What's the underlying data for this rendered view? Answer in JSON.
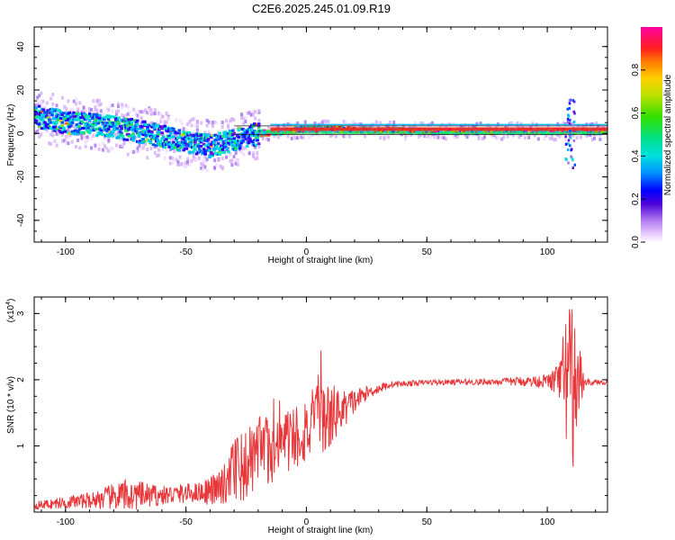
{
  "title": "C2E6.2025.245.01.09.R19",
  "chart_data": [
    {
      "type": "heatmap",
      "name": "spectrogram",
      "xlabel": "Height of straight line (km)",
      "ylabel": "Frequency (Hz)",
      "xlim": [
        -113,
        125
      ],
      "ylim": [
        -50,
        49
      ],
      "xticks": [
        -100,
        -50,
        0,
        50,
        100
      ],
      "yticks": [
        -40,
        -20,
        0,
        20,
        40
      ],
      "colorbar": {
        "label": "Normalized spectral amplitude",
        "range": [
          0.0,
          1.0
        ],
        "ticks": [
          0.0,
          0.2,
          0.4,
          0.6,
          0.8
        ],
        "tick_labels": [
          "0.0",
          "0.2",
          "0.4",
          "0.6",
          "0.8"
        ]
      },
      "ridge": [
        {
          "x": -113,
          "f": 8
        },
        {
          "x": -100,
          "f": 5
        },
        {
          "x": -80,
          "f": 3
        },
        {
          "x": -65,
          "f": 0
        },
        {
          "x": -50,
          "f": -4
        },
        {
          "x": -40,
          "f": -6
        },
        {
          "x": -30,
          "f": -3
        },
        {
          "x": -20,
          "f": 0
        },
        {
          "x": -10,
          "f": 1
        },
        {
          "x": 0,
          "f": 2
        },
        {
          "x": 50,
          "f": 1
        },
        {
          "x": 100,
          "f": 1
        },
        {
          "x": 110,
          "f": 1
        },
        {
          "x": 125,
          "f": 1
        }
      ]
    },
    {
      "type": "line",
      "name": "snr",
      "xlabel": "Height of straight line (km)",
      "ylabel": "SNR (10 * v/v)",
      "scale_label": "(x10",
      "scale_exponent": "4",
      "scale_close": ")",
      "xlim": [
        -113,
        125
      ],
      "ylim": [
        0,
        3.25
      ],
      "xticks": [
        -100,
        -50,
        0,
        50,
        100
      ],
      "yticks": [
        1,
        2,
        3
      ],
      "color": "#e8373a",
      "envelope": [
        {
          "x": -113,
          "mean": 0.1,
          "amp": 0.06
        },
        {
          "x": -90,
          "mean": 0.18,
          "amp": 0.12
        },
        {
          "x": -75,
          "mean": 0.25,
          "amp": 0.25
        },
        {
          "x": -60,
          "mean": 0.25,
          "amp": 0.15
        },
        {
          "x": -45,
          "mean": 0.3,
          "amp": 0.15
        },
        {
          "x": -35,
          "mean": 0.35,
          "amp": 0.3
        },
        {
          "x": -30,
          "mean": 0.55,
          "amp": 0.55
        },
        {
          "x": -20,
          "mean": 0.85,
          "amp": 0.6
        },
        {
          "x": -10,
          "mean": 1.05,
          "amp": 0.5
        },
        {
          "x": 0,
          "mean": 1.25,
          "amp": 0.55
        },
        {
          "x": 7,
          "mean": 1.4,
          "amp": 0.6
        },
        {
          "x": 15,
          "mean": 1.55,
          "amp": 0.3
        },
        {
          "x": 25,
          "mean": 1.8,
          "amp": 0.1
        },
        {
          "x": 35,
          "mean": 1.93,
          "amp": 0.05
        },
        {
          "x": 50,
          "mean": 1.96,
          "amp": 0.04
        },
        {
          "x": 80,
          "mean": 1.97,
          "amp": 0.05
        },
        {
          "x": 100,
          "mean": 1.98,
          "amp": 0.1
        },
        {
          "x": 105,
          "mean": 1.98,
          "amp": 0.3
        },
        {
          "x": 109,
          "mean": 1.95,
          "amp": 1.4
        },
        {
          "x": 113,
          "mean": 1.97,
          "amp": 0.6
        },
        {
          "x": 116,
          "mean": 1.96,
          "amp": 0.05
        },
        {
          "x": 125,
          "mean": 1.96,
          "amp": 0.03
        }
      ]
    }
  ]
}
